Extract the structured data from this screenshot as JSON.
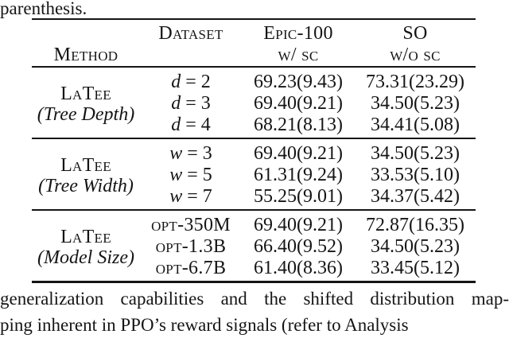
{
  "colors": {
    "text": "#151515",
    "background": "#ffffff",
    "rule": "#151515"
  },
  "caption_tail": "parenthesis.",
  "table": {
    "header": {
      "method": "Method",
      "dataset": "Dataset",
      "epic_line1": "Epic-100",
      "epic_line2": "w/ sc",
      "so_line1": "SO",
      "so_line2": "w/o sc"
    },
    "groups": [
      {
        "method_name": "LaTee",
        "method_note": "(Tree Depth)",
        "rows": [
          {
            "param": {
              "var": "d",
              "sc": "",
              "rest": " = 2"
            },
            "epic": "69.23(9.43)",
            "so": "73.31(23.29)"
          },
          {
            "param": {
              "var": "d",
              "sc": "",
              "rest": " = 3"
            },
            "epic": "69.40(9.21)",
            "so": "34.50(5.23)"
          },
          {
            "param": {
              "var": "d",
              "sc": "",
              "rest": " = 4"
            },
            "epic": "68.21(8.13)",
            "so": "34.41(5.08)"
          }
        ]
      },
      {
        "method_name": "LaTee",
        "method_note": "(Tree Width)",
        "rows": [
          {
            "param": {
              "var": "w",
              "sc": "",
              "rest": " = 3"
            },
            "epic": "69.40(9.21)",
            "so": "34.50(5.23)"
          },
          {
            "param": {
              "var": "w",
              "sc": "",
              "rest": " = 5"
            },
            "epic": "61.31(9.24)",
            "so": "33.53(5.10)"
          },
          {
            "param": {
              "var": "w",
              "sc": "",
              "rest": " = 7"
            },
            "epic": "55.25(9.01)",
            "so": "34.37(5.42)"
          }
        ]
      },
      {
        "method_name": "LaTee",
        "method_note": "(Model Size)",
        "rows": [
          {
            "param": {
              "var": "",
              "sc": "opt-350M",
              "rest": ""
            },
            "epic": "69.40(9.21)",
            "so": "72.87(16.35)"
          },
          {
            "param": {
              "var": "",
              "sc": "opt-1.3B",
              "rest": ""
            },
            "epic": "66.40(9.52)",
            "so": "34.50(5.23)"
          },
          {
            "param": {
              "var": "",
              "sc": "opt-6.7B",
              "rest": ""
            },
            "epic": "61.40(8.36)",
            "so": "33.45(5.12)"
          }
        ]
      }
    ]
  },
  "body_text": {
    "line1": "generalization capabilities and the shifted distribution map-",
    "line2": "ping inherent in PPO’s reward signals (refer to Analysis"
  }
}
